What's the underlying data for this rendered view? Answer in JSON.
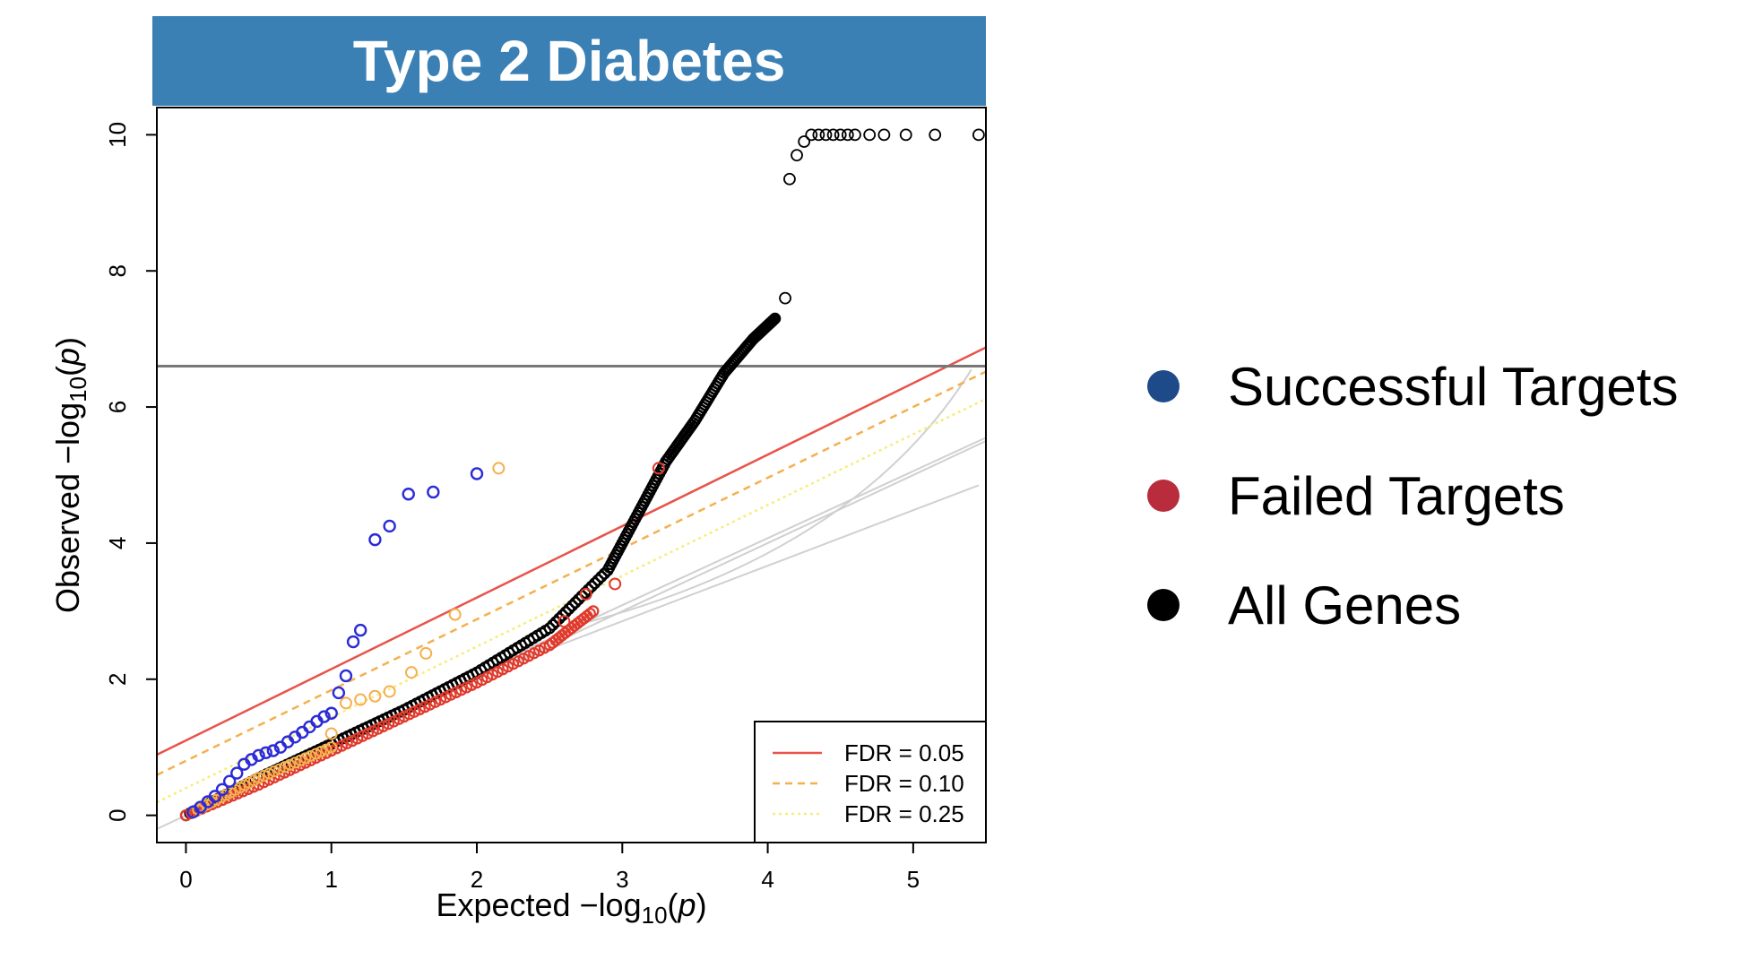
{
  "title": "Type 2 Diabetes",
  "chart_data": {
    "type": "scatter",
    "xlabel_main": "Expected",
    "xlabel_sub": "10",
    "ylabel_main": "Observed",
    "ylabel_sub": "10",
    "xlim": [
      -0.2,
      5.5
    ],
    "ylim": [
      -0.4,
      10.4
    ],
    "xticks": [
      0,
      1,
      2,
      3,
      4,
      5
    ],
    "yticks": [
      0,
      2,
      4,
      6,
      8,
      10
    ],
    "threshold_y": 6.6,
    "fdr_lines": [
      {
        "label": "FDR = 0.05",
        "color": "#e8534a",
        "dash": "",
        "intercept": 1.1,
        "slope": 1.05
      },
      {
        "label": "FDR = 0.10",
        "color": "#f5b04e",
        "dash": "8,6",
        "intercept": 0.8,
        "slope": 1.04
      },
      {
        "label": "FDR = 0.25",
        "color": "#f7ec7a",
        "dash": "3,4",
        "intercept": 0.4,
        "slope": 1.04
      }
    ],
    "legend_position": "bottom-right",
    "all_genes": {
      "color": "#000000",
      "curve": [
        [
          0,
          0
        ],
        [
          0.5,
          0.55
        ],
        [
          1,
          1.05
        ],
        [
          1.5,
          1.55
        ],
        [
          2,
          2.1
        ],
        [
          2.5,
          2.75
        ],
        [
          2.9,
          3.6
        ],
        [
          3.1,
          4.4
        ],
        [
          3.3,
          5.2
        ],
        [
          3.5,
          5.8
        ],
        [
          3.7,
          6.5
        ],
        [
          3.9,
          7.0
        ],
        [
          4.05,
          7.3
        ]
      ],
      "outliers": [
        [
          4.12,
          7.6
        ],
        [
          4.15,
          9.35
        ],
        [
          4.2,
          9.7
        ],
        [
          4.25,
          9.9
        ],
        [
          4.3,
          10
        ],
        [
          4.35,
          10
        ],
        [
          4.4,
          10
        ],
        [
          4.45,
          10
        ],
        [
          4.5,
          10
        ],
        [
          4.55,
          10
        ],
        [
          4.6,
          10
        ],
        [
          4.7,
          10
        ],
        [
          4.8,
          10
        ],
        [
          4.95,
          10
        ],
        [
          5.15,
          10
        ],
        [
          5.45,
          10
        ]
      ]
    },
    "successful_targets": {
      "color": "#2b2bd8",
      "points": [
        [
          0.05,
          0.05
        ],
        [
          0.1,
          0.12
        ],
        [
          0.15,
          0.2
        ],
        [
          0.2,
          0.28
        ],
        [
          0.25,
          0.38
        ],
        [
          0.3,
          0.5
        ],
        [
          0.35,
          0.62
        ],
        [
          0.4,
          0.75
        ],
        [
          0.45,
          0.82
        ],
        [
          0.5,
          0.88
        ],
        [
          0.55,
          0.92
        ],
        [
          0.6,
          0.95
        ],
        [
          0.65,
          1.0
        ],
        [
          0.7,
          1.08
        ],
        [
          0.75,
          1.15
        ],
        [
          0.8,
          1.22
        ],
        [
          0.85,
          1.3
        ],
        [
          0.9,
          1.38
        ],
        [
          0.95,
          1.45
        ],
        [
          1.0,
          1.5
        ],
        [
          1.05,
          1.8
        ],
        [
          1.1,
          2.05
        ],
        [
          1.15,
          2.55
        ],
        [
          1.2,
          2.72
        ],
        [
          1.3,
          4.05
        ],
        [
          1.4,
          4.25
        ],
        [
          1.53,
          4.72
        ],
        [
          1.7,
          4.75
        ],
        [
          2.0,
          5.02
        ]
      ]
    },
    "fdr10_points": {
      "color": "#f5b04e",
      "points": [
        [
          1.0,
          1.2
        ],
        [
          1.1,
          1.65
        ],
        [
          1.2,
          1.7
        ],
        [
          1.3,
          1.75
        ],
        [
          1.4,
          1.82
        ],
        [
          1.55,
          2.1
        ],
        [
          1.65,
          2.38
        ],
        [
          1.85,
          2.95
        ],
        [
          2.15,
          5.1
        ]
      ]
    },
    "failed_targets": {
      "color": "#e03a2c",
      "curve": [
        [
          0,
          0
        ],
        [
          0.5,
          0.45
        ],
        [
          1,
          0.95
        ],
        [
          1.5,
          1.45
        ],
        [
          2,
          1.95
        ],
        [
          2.5,
          2.5
        ],
        [
          2.8,
          3.0
        ]
      ],
      "points": [
        [
          2.6,
          2.85
        ],
        [
          2.75,
          3.25
        ],
        [
          2.95,
          3.4
        ],
        [
          3.25,
          5.1
        ]
      ]
    }
  },
  "legend": {
    "items": [
      {
        "label": "Successful Targets",
        "color": "#1f4a8a"
      },
      {
        "label": "Failed Targets",
        "color": "#b82c3c"
      },
      {
        "label": "All Genes",
        "color": "#000000"
      }
    ]
  }
}
